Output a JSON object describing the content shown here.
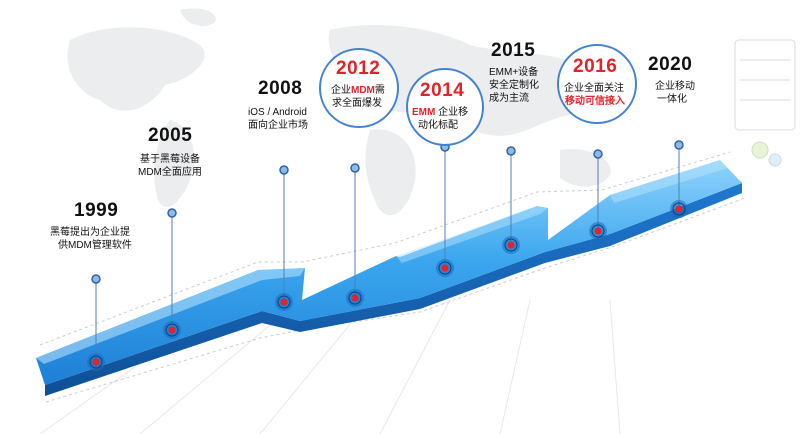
{
  "milestones": [
    {
      "year": "1999",
      "line1": "黑莓提出为企业提",
      "line2": "供MDM管理软件"
    },
    {
      "year": "2005",
      "line1": "基于黑莓设备",
      "line2": "MDM全面应用"
    },
    {
      "year": "2008",
      "line1": "iOS / Android",
      "line2": "面向企业市场"
    },
    {
      "year": "2012",
      "line1_pre": "企业",
      "line1_hl": "MDM",
      "line1_post": "需",
      "line2": "求全面爆发"
    },
    {
      "year": "2014",
      "line1_pre": "EMM",
      "line1_post": " 企业移",
      "line2": "动化标配"
    },
    {
      "year": "2015",
      "line1": "EMM+设备",
      "line2": "安全定制化",
      "line3": "成为主流"
    },
    {
      "year": "2016",
      "line1": "企业全面关注",
      "line2": "移动可信接入"
    },
    {
      "year": "2020",
      "line1": "企业移动",
      "line2": "一体化"
    }
  ],
  "colors": {
    "ribbon_top": "#6cc3f7",
    "ribbon_mid": "#2d9be8",
    "ribbon_side": "#1c6fc2",
    "accent_red": "#e2232a",
    "pin_blue": "#3f7fd0"
  }
}
